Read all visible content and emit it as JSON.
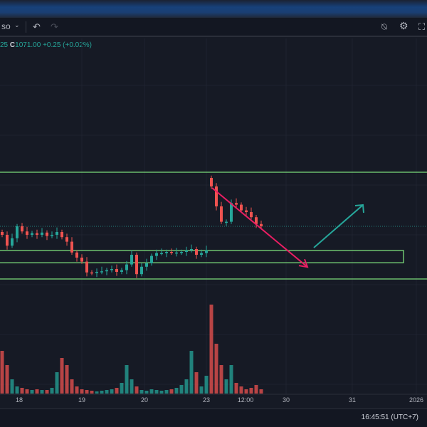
{
  "toolbar": {
    "symbol_fragment": "so",
    "undo_icon": "undo-icon",
    "redo_icon": "redo-icon",
    "icons": [
      "alert-icon",
      "gear-icon",
      "fullscreen-icon"
    ]
  },
  "legend": {
    "prev_fragment": "25",
    "close_label": "C",
    "close_value": "1071.00",
    "change": "+0.25 (+0.02%)"
  },
  "colors": {
    "up": "#26a69a",
    "down": "#ef5350",
    "zone": "#7bdc7b",
    "arrow_down": "#e91e63",
    "arrow_up": "#26a69a"
  },
  "chart_data": {
    "type": "candlestick",
    "closes": [
      1069.5,
      1067.6,
      1068.9,
      1071.0,
      1070.1,
      1069.5,
      1069.8,
      1069.5,
      1069.9,
      1069.3,
      1069.5,
      1070.0,
      1069.1,
      1068.3,
      1066.4,
      1065.5,
      1064.8,
      1062.9,
      1062.8,
      1063.0,
      1063.1,
      1063.3,
      1063.5,
      1063.0,
      1063.3,
      1064.3,
      1066.0,
      1062.6,
      1063.9,
      1064.5,
      1065.8,
      1066.3,
      1066.3,
      1066.5,
      1066.4,
      1066.4,
      1066.5,
      1066.8,
      1067.0,
      1066.0,
      1066.3,
      1066.8,
      1078.0,
      1074.5,
      1071.8,
      1071.8,
      1075.1,
      1074.8,
      1073.8,
      1073.5,
      1072.6,
      1071.4,
      1071.0
    ],
    "volumes": [
      60,
      40,
      20,
      10,
      8,
      6,
      5,
      6,
      5,
      5,
      8,
      30,
      50,
      40,
      20,
      10,
      6,
      5,
      4,
      3,
      4,
      5,
      6,
      8,
      15,
      40,
      20,
      10,
      5,
      4,
      6,
      5,
      4,
      5,
      6,
      8,
      12,
      20,
      60,
      30,
      10,
      25,
      125,
      70,
      40,
      20,
      40,
      15,
      10,
      6,
      8,
      12,
      6
    ],
    "x_ticks": [
      "18",
      "19",
      "20",
      "23",
      "12:00",
      "30",
      "31",
      "2026"
    ],
    "last_price": 1071.0,
    "horizontal_levels": [
      1080.5,
      1061.75
    ],
    "zone": [
      1064.6,
      1066.75
    ],
    "projection": {
      "down_from": 1077.0,
      "down_to": 1064.6,
      "up_to": 1074.75
    }
  },
  "status": {
    "clock": "16:45:51 (UTC+7)"
  }
}
